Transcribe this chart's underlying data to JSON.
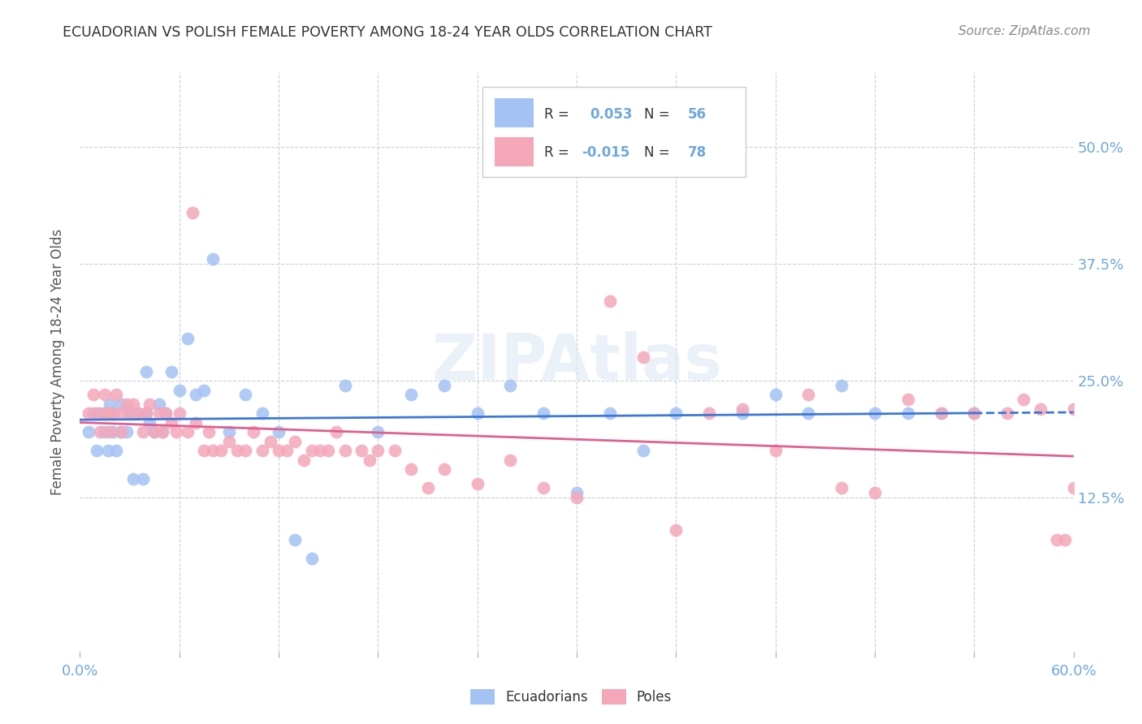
{
  "title": "ECUADORIAN VS POLISH FEMALE POVERTY AMONG 18-24 YEAR OLDS CORRELATION CHART",
  "source": "Source: ZipAtlas.com",
  "ylabel": "Female Poverty Among 18-24 Year Olds",
  "color_blue": "#a4c2f4",
  "color_pink": "#f4a7b9",
  "color_blue_line": "#3c78d8",
  "color_pink_line": "#e06090",
  "color_axis": "#6fa8dc",
  "watermark": "ZIPAtlas",
  "xlim": [
    0.0,
    0.6
  ],
  "ylim": [
    -0.04,
    0.58
  ],
  "ytick_values": [
    0.125,
    0.25,
    0.375,
    0.5
  ],
  "ytick_labels": [
    "12.5%",
    "25.0%",
    "37.5%",
    "50.0%"
  ],
  "xtick_left_label": "0.0%",
  "xtick_right_label": "60.0%",
  "legend_label1": "R =  0.053   N = 56",
  "legend_label2": "R = -0.015   N = 78",
  "legend_r1": "0.053",
  "legend_n1": "56",
  "legend_r2": "-0.015",
  "legend_n2": "78",
  "ecu_x": [
    0.005,
    0.008,
    0.01,
    0.012,
    0.015,
    0.015,
    0.017,
    0.018,
    0.02,
    0.02,
    0.022,
    0.025,
    0.025,
    0.028,
    0.03,
    0.032,
    0.035,
    0.038,
    0.04,
    0.04,
    0.042,
    0.045,
    0.048,
    0.05,
    0.052,
    0.055,
    0.06,
    0.065,
    0.07,
    0.075,
    0.08,
    0.09,
    0.1,
    0.11,
    0.12,
    0.13,
    0.14,
    0.16,
    0.18,
    0.2,
    0.22,
    0.24,
    0.26,
    0.28,
    0.3,
    0.32,
    0.34,
    0.36,
    0.4,
    0.42,
    0.44,
    0.46,
    0.48,
    0.5,
    0.52,
    0.54
  ],
  "ecu_y": [
    0.195,
    0.215,
    0.175,
    0.215,
    0.195,
    0.215,
    0.175,
    0.225,
    0.195,
    0.215,
    0.175,
    0.195,
    0.225,
    0.195,
    0.215,
    0.145,
    0.215,
    0.145,
    0.215,
    0.26,
    0.205,
    0.195,
    0.225,
    0.195,
    0.215,
    0.26,
    0.24,
    0.295,
    0.235,
    0.24,
    0.38,
    0.195,
    0.235,
    0.215,
    0.195,
    0.08,
    0.06,
    0.245,
    0.195,
    0.235,
    0.245,
    0.215,
    0.245,
    0.215,
    0.13,
    0.215,
    0.175,
    0.215,
    0.215,
    0.235,
    0.215,
    0.245,
    0.215,
    0.215,
    0.215,
    0.215
  ],
  "pol_x": [
    0.005,
    0.008,
    0.01,
    0.012,
    0.015,
    0.015,
    0.017,
    0.018,
    0.02,
    0.022,
    0.025,
    0.025,
    0.028,
    0.03,
    0.032,
    0.035,
    0.038,
    0.04,
    0.042,
    0.045,
    0.048,
    0.05,
    0.052,
    0.055,
    0.058,
    0.06,
    0.065,
    0.068,
    0.07,
    0.075,
    0.078,
    0.08,
    0.085,
    0.09,
    0.095,
    0.1,
    0.105,
    0.11,
    0.115,
    0.12,
    0.125,
    0.13,
    0.135,
    0.14,
    0.145,
    0.15,
    0.155,
    0.16,
    0.17,
    0.175,
    0.18,
    0.19,
    0.2,
    0.21,
    0.22,
    0.24,
    0.26,
    0.28,
    0.3,
    0.32,
    0.34,
    0.36,
    0.38,
    0.4,
    0.42,
    0.44,
    0.46,
    0.48,
    0.5,
    0.52,
    0.54,
    0.56,
    0.57,
    0.58,
    0.59,
    0.595,
    0.6,
    0.6
  ],
  "pol_y": [
    0.215,
    0.235,
    0.215,
    0.195,
    0.215,
    0.235,
    0.215,
    0.195,
    0.215,
    0.235,
    0.215,
    0.195,
    0.225,
    0.215,
    0.225,
    0.215,
    0.195,
    0.215,
    0.225,
    0.195,
    0.215,
    0.195,
    0.215,
    0.205,
    0.195,
    0.215,
    0.195,
    0.43,
    0.205,
    0.175,
    0.195,
    0.175,
    0.175,
    0.185,
    0.175,
    0.175,
    0.195,
    0.175,
    0.185,
    0.175,
    0.175,
    0.185,
    0.165,
    0.175,
    0.175,
    0.175,
    0.195,
    0.175,
    0.175,
    0.165,
    0.175,
    0.175,
    0.155,
    0.135,
    0.155,
    0.14,
    0.165,
    0.135,
    0.125,
    0.335,
    0.275,
    0.09,
    0.215,
    0.22,
    0.175,
    0.235,
    0.135,
    0.13,
    0.23,
    0.215,
    0.215,
    0.215,
    0.23,
    0.22,
    0.08,
    0.08,
    0.135,
    0.22
  ]
}
